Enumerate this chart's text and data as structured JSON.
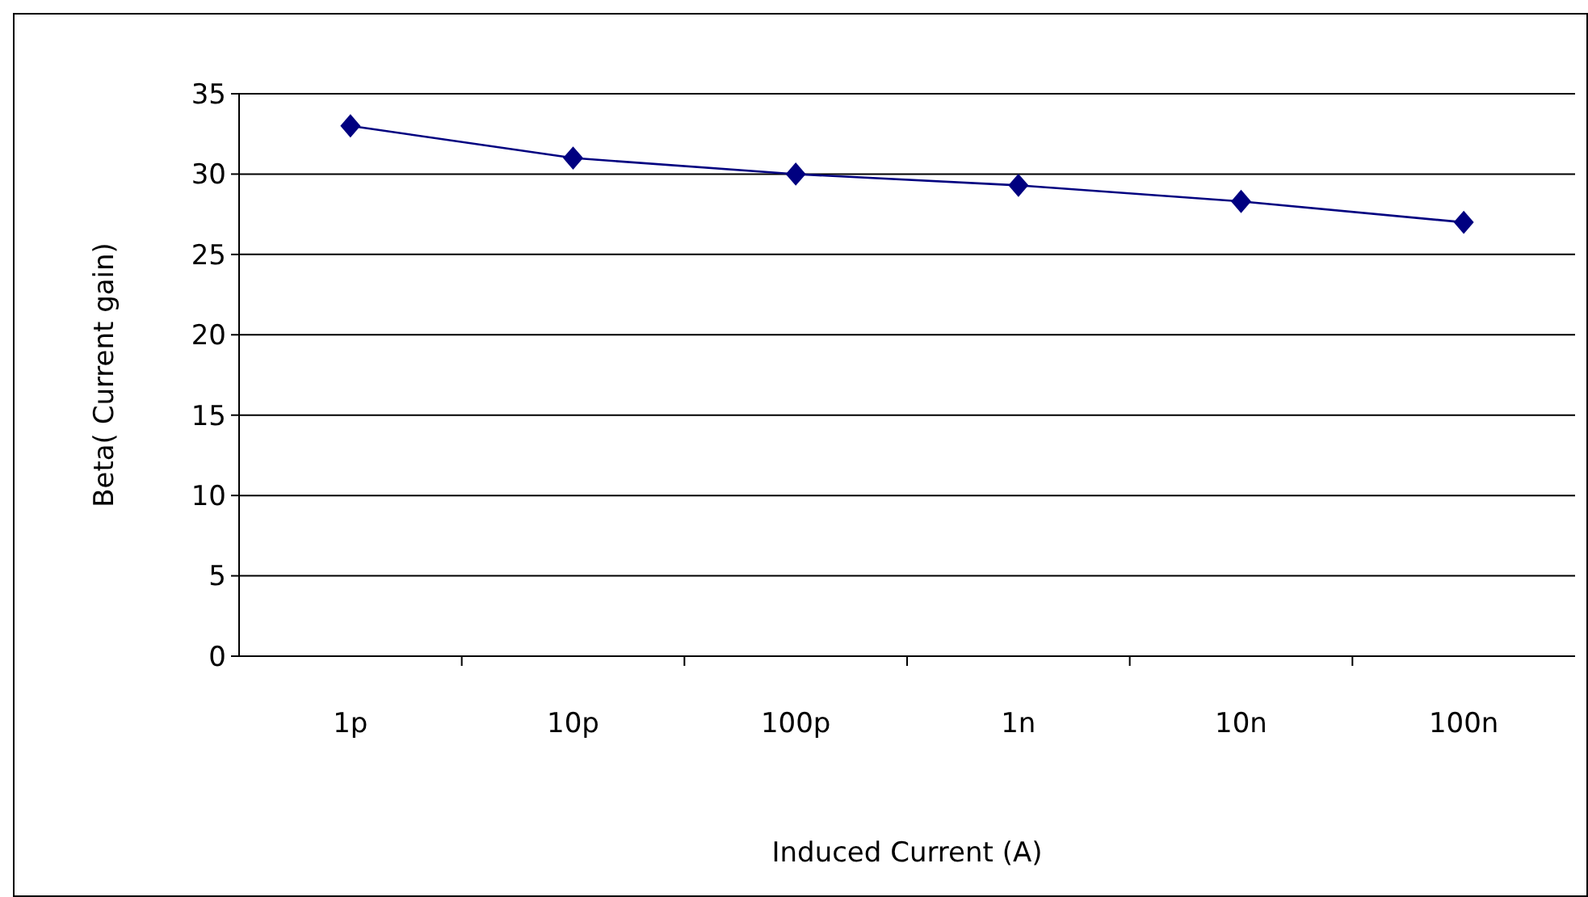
{
  "chart_data": {
    "type": "line",
    "xlabel": "Induced Current (A)",
    "ylabel": "Beta( Current gain)",
    "categories": [
      "1p",
      "10p",
      "100p",
      "1n",
      "10n",
      "100n"
    ],
    "series": [
      {
        "color": "#000080",
        "values": [
          33,
          31,
          30,
          29.3,
          28.3,
          27
        ]
      }
    ],
    "ylim": [
      0,
      35
    ],
    "yticks": [
      0,
      5,
      10,
      15,
      20,
      25,
      30,
      35
    ],
    "grid": "y",
    "marker": "diamond"
  }
}
